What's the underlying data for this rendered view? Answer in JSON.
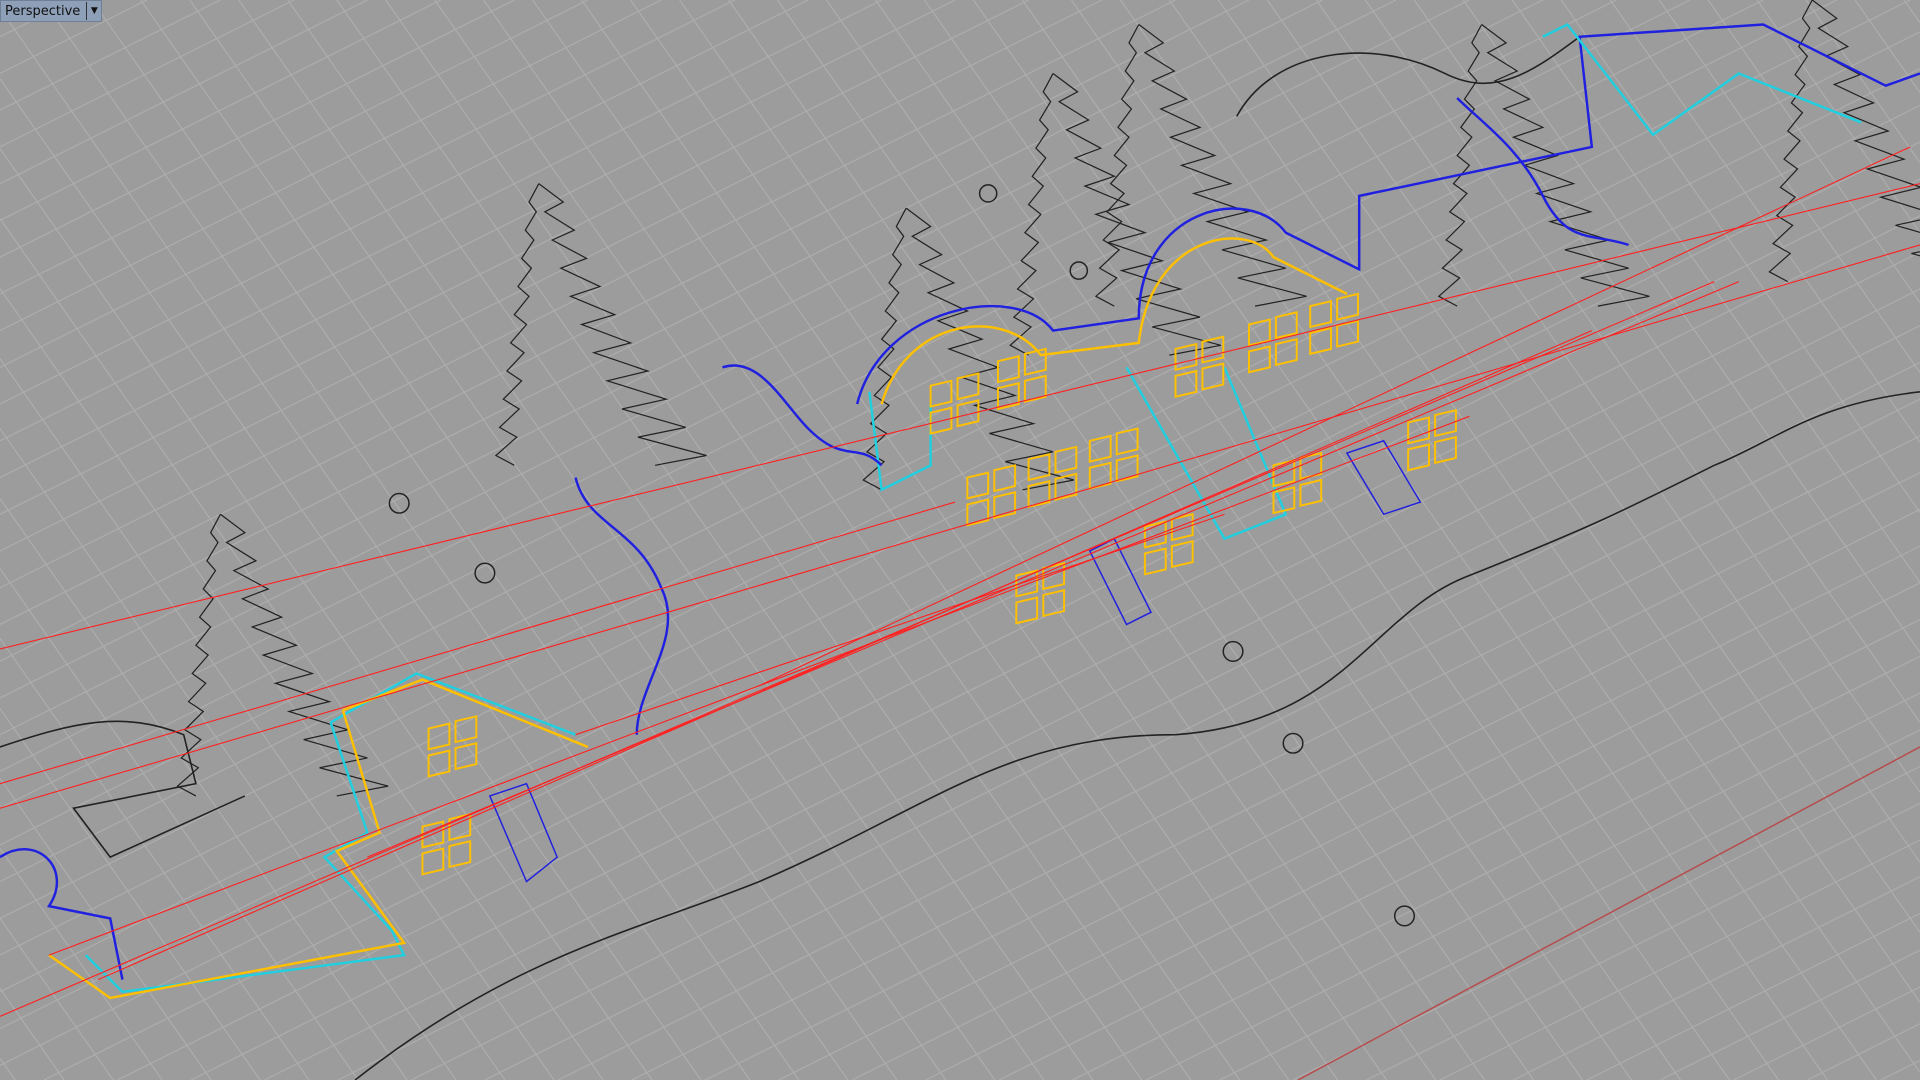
{
  "viewport": {
    "name": "Perspective",
    "menu_icon": "chevron-down-icon",
    "colors": {
      "background": "#9c9c9c",
      "grid": "#a9a9a9",
      "x_axis": "#b84a4a",
      "curve_black": "#222222",
      "curve_yellow": "#ffc000",
      "curve_blue": "#2020e0",
      "curve_cyan": "#20d0e0",
      "curve_red": "#ff2020",
      "curve_magenta": "#e020e0"
    }
  }
}
